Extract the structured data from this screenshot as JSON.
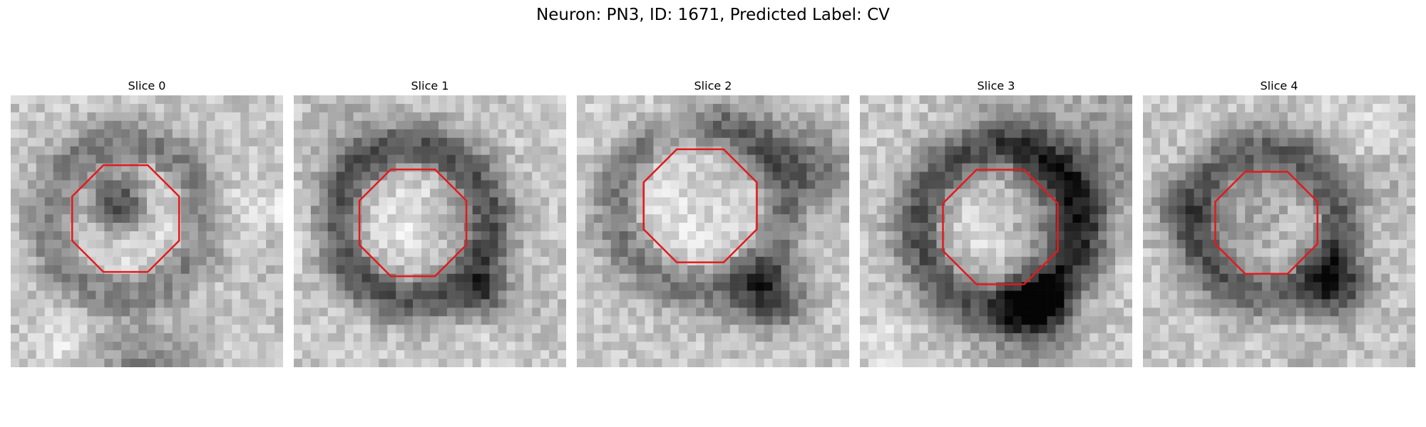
{
  "figure": {
    "title": "Neuron: PN3, ID: 1671, Predicted Label: CV"
  },
  "colors": {
    "outline": "#e31a1c",
    "background": "#ffffff"
  },
  "panels": [
    {
      "title": "Slice 0",
      "seed": 11
    },
    {
      "title": "Slice 1",
      "seed": 23
    },
    {
      "title": "Slice 2",
      "seed": 37
    },
    {
      "title": "Slice 3",
      "seed": 41
    },
    {
      "title": "Slice 4",
      "seed": 53
    }
  ]
}
